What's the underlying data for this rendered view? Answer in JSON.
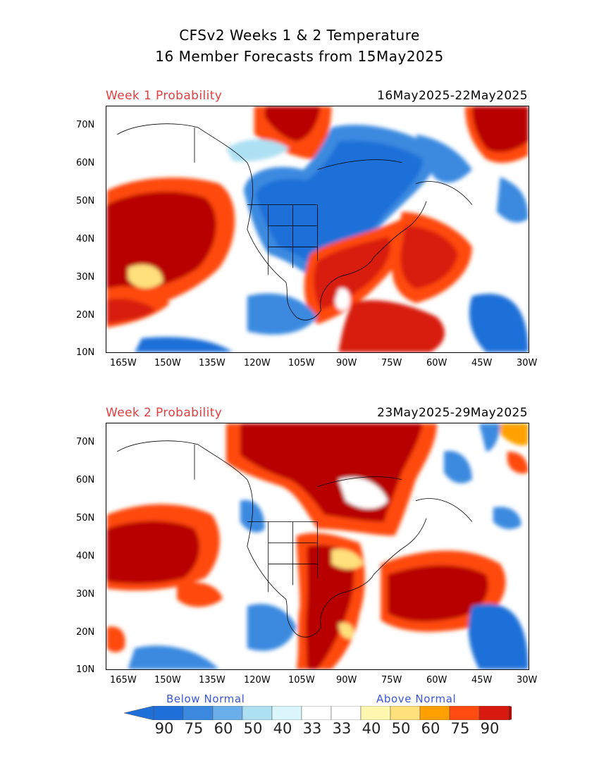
{
  "title": {
    "line1": "CFSv2 Weeks 1 & 2 Temperature",
    "line2": "16 Member Forecasts from 15May2025"
  },
  "panels": [
    {
      "label": "Week 1 Probability",
      "dates": "16May2025-22May2025"
    },
    {
      "label": "Week 2 Probability",
      "dates": "23May2025-29May2025"
    }
  ],
  "axes": {
    "lat_labels": [
      "70N",
      "60N",
      "50N",
      "40N",
      "30N",
      "20N",
      "10N"
    ],
    "lon_labels": [
      "165W",
      "150W",
      "135W",
      "120W",
      "105W",
      "90W",
      "75W",
      "60W",
      "45W",
      "30W"
    ]
  },
  "legend": {
    "below_label": "Below Normal",
    "above_label": "Above Normal",
    "values": [
      "90",
      "75",
      "60",
      "50",
      "40",
      "33",
      "33",
      "40",
      "50",
      "60",
      "75",
      "90"
    ],
    "colors": [
      "#1e6fd8",
      "#3b8ae0",
      "#6aaeea",
      "#aee0f3",
      "#daf6fb",
      "#ffffff",
      "#ffffff",
      "#fff7b0",
      "#ffe07a",
      "#ffa000",
      "#ff4a10",
      "#d81a0e"
    ],
    "end_left_color": "#1e6fd8",
    "end_right_color": "#b30000"
  },
  "colors": {
    "blue_strong": "#1e6fd8",
    "blue_mid": "#3b8ae0",
    "blue_light": "#aee0f3",
    "red_dark": "#b80000",
    "red": "#ff3a0a",
    "orange": "#ffa000",
    "yellow": "#ffe07a"
  }
}
